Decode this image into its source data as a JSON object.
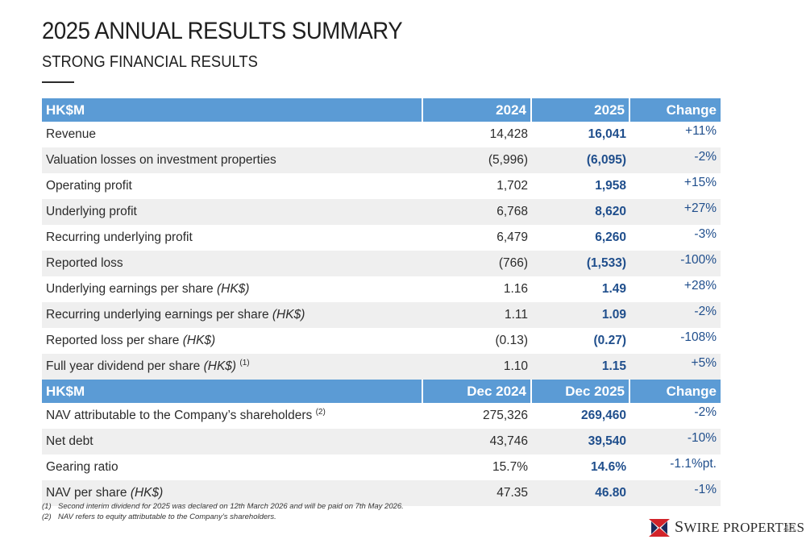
{
  "header": {
    "title": "2025 ANNUAL RESULTS SUMMARY",
    "subtitle": "STRONG FINANCIAL RESULTS"
  },
  "table1": {
    "headers": [
      "HK$M",
      "2024",
      "2025",
      "Change"
    ],
    "rows": [
      {
        "label": "Revenue",
        "v2024": "14,428",
        "v2025": "16,041",
        "change": "+11%"
      },
      {
        "label": "Valuation losses on investment properties",
        "v2024": "(5,996)",
        "v2025": "(6,095)",
        "change": "-2%"
      },
      {
        "label": "Operating profit",
        "v2024": "1,702",
        "v2025": "1,958",
        "change": "+15%"
      },
      {
        "label": "Underlying profit",
        "v2024": "6,768",
        "v2025": "8,620",
        "change": "+27%"
      },
      {
        "label": "Recurring underlying profit",
        "v2024": "6,479",
        "v2025": "6,260",
        "change": "-3%"
      },
      {
        "label": "Reported loss",
        "v2024": "(766)",
        "v2025": "(1,533)",
        "change": "-100%"
      },
      {
        "label": "Underlying earnings per share",
        "unit": "(HK$)",
        "v2024": "1.16",
        "v2025": "1.49",
        "change": "+28%"
      },
      {
        "label": "Recurring underlying earnings per share",
        "unit": "(HK$)",
        "v2024": "1.11",
        "v2025": "1.09",
        "change": "-2%"
      },
      {
        "label": "Reported loss per share",
        "unit": "(HK$)",
        "v2024": "(0.13)",
        "v2025": "(0.27)",
        "change": "-108%"
      },
      {
        "label": "Full year dividend per share",
        "unit": "(HK$)",
        "note": "(1)",
        "v2024": "1.10",
        "v2025": "1.15",
        "change": "+5%"
      }
    ]
  },
  "table2": {
    "headers": [
      "HK$M",
      "Dec 2024",
      "Dec 2025",
      "Change"
    ],
    "rows": [
      {
        "label": "NAV attributable to the Company’s shareholders",
        "note": "(2)",
        "v2024": "275,326",
        "v2025": "269,460",
        "change": "-2%"
      },
      {
        "label": "Net debt",
        "v2024": "43,746",
        "v2025": "39,540",
        "change": "-10%"
      },
      {
        "label": "Gearing ratio",
        "v2024": "15.7%",
        "v2025": "14.6%",
        "change": "-1.1%pt."
      },
      {
        "label": "NAV per share",
        "unit": "(HK$)",
        "v2024": "47.35",
        "v2025": "46.80",
        "change": "-1%"
      }
    ]
  },
  "footnotes": [
    {
      "num": "(1)",
      "text": "Second interim dividend for 2025 was declared on 12th March 2026 and will be paid on 7th May 2026."
    },
    {
      "num": "(2)",
      "text": "NAV refers to equity attributable to the Company’s shareholders."
    }
  ],
  "logo": {
    "text_first": "S",
    "text_rest": "WIRE PROPERTIES",
    "colors": {
      "red": "#d2232a",
      "navy": "#1b2a5c"
    }
  },
  "page_number": "43"
}
